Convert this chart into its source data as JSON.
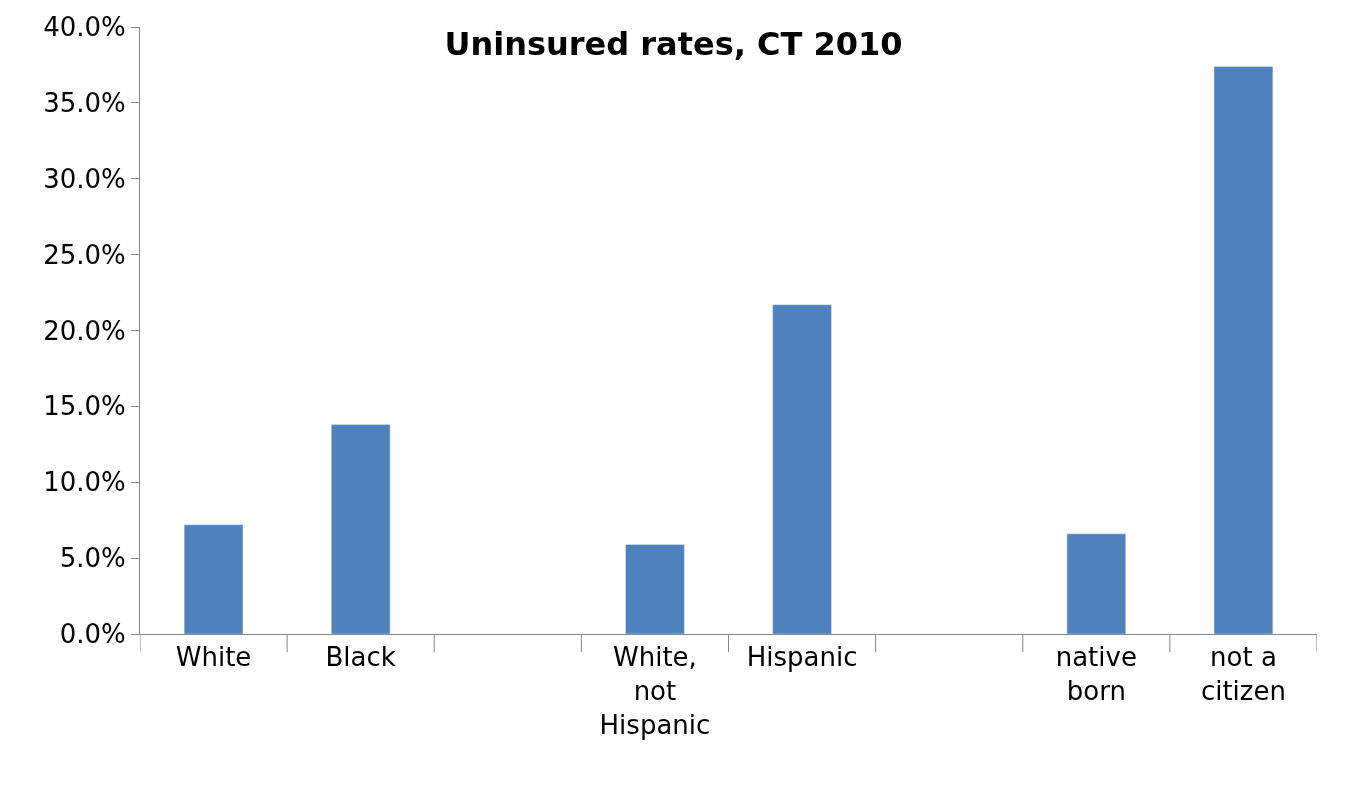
{
  "chart_data": {
    "type": "bar",
    "title": "Uninsured rates, CT 2010",
    "categories": [
      "White",
      "Black",
      null,
      "White, not Hispanic",
      "Hispanic",
      null,
      "native born",
      "not a citizen"
    ],
    "values": [
      7.2,
      13.8,
      null,
      5.9,
      21.7,
      null,
      6.6,
      37.4
    ],
    "color": "#4f81bd",
    "ylim": [
      0,
      40
    ],
    "yticks": [
      {
        "value": 0,
        "label": "0.0%"
      },
      {
        "value": 5,
        "label": "5.0%"
      },
      {
        "value": 10,
        "label": "10.0%"
      },
      {
        "value": 15,
        "label": "15.0%"
      },
      {
        "value": 20,
        "label": "20.0%"
      },
      {
        "value": 25,
        "label": "25.0%"
      },
      {
        "value": 30,
        "label": "30.0%"
      },
      {
        "value": 35,
        "label": "35.0%"
      },
      {
        "value": 40,
        "label": "40.0%"
      }
    ],
    "legend": false
  }
}
